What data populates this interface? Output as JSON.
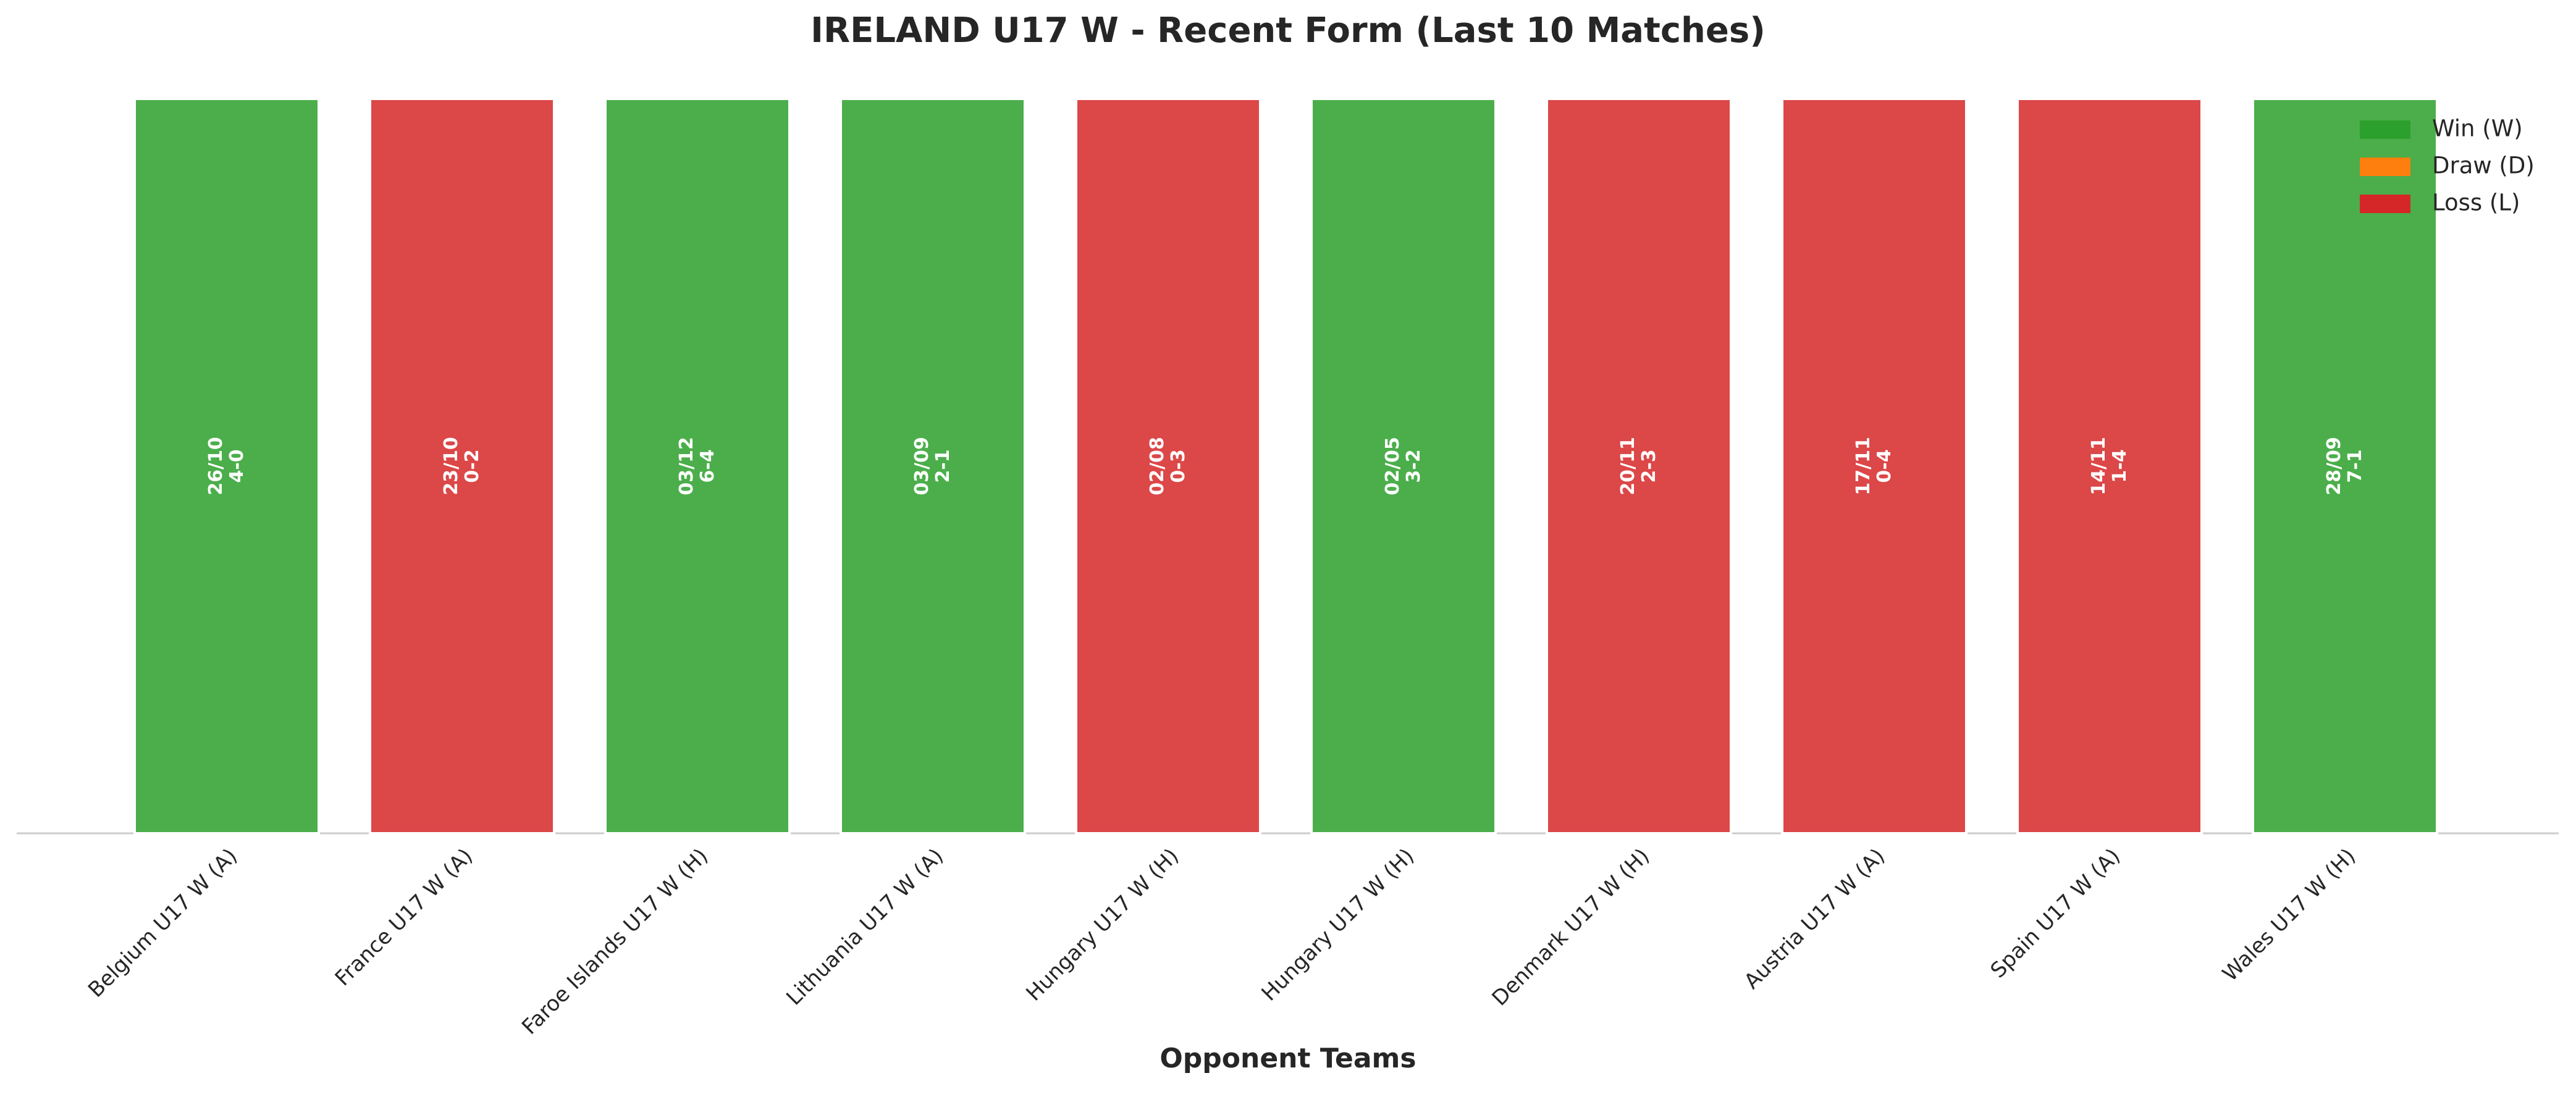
{
  "chart_data": {
    "type": "bar",
    "title": "IRELAND U17 W - Recent Form (Last 10 Matches)",
    "x_label": "Opponent Teams",
    "categories": [
      "Belgium U17 W (A)",
      "France U17 W (A)",
      "Faroe Islands U17 W (H)",
      "Lithuania U17 W (A)",
      "Hungary U17 W (H)",
      "Hungary U17 W (H)",
      "Denmark U17 W (H)",
      "Austria U17 W (A)",
      "Spain U17 W (A)",
      "Wales U17 W (H)"
    ],
    "values": [
      1,
      1,
      1,
      1,
      1,
      1,
      1,
      1,
      1,
      1
    ],
    "dates": [
      "26/10",
      "23/10",
      "03/12",
      "03/09",
      "02/08",
      "02/05",
      "20/11",
      "17/11",
      "14/11",
      "28/09"
    ],
    "scores": [
      "4-0",
      "0-2",
      "6-4",
      "2-1",
      "0-3",
      "3-2",
      "2-3",
      "0-4",
      "1-4",
      "7-1"
    ],
    "colors": [
      "#2ca02c",
      "#d62728",
      "#2ca02c",
      "#2ca02c",
      "#d62728",
      "#2ca02c",
      "#d62728",
      "#d62728",
      "#d62728",
      "#2ca02c"
    ],
    "ylim": [
      0,
      1
    ],
    "legend": {
      "position": "upper right",
      "items": [
        {
          "name": "Win (W)",
          "color": "#2ca02c"
        },
        {
          "name": "Draw (D)",
          "color": "#ff7f0e"
        },
        {
          "name": "Loss (L)",
          "color": "#d62728"
        }
      ]
    }
  }
}
